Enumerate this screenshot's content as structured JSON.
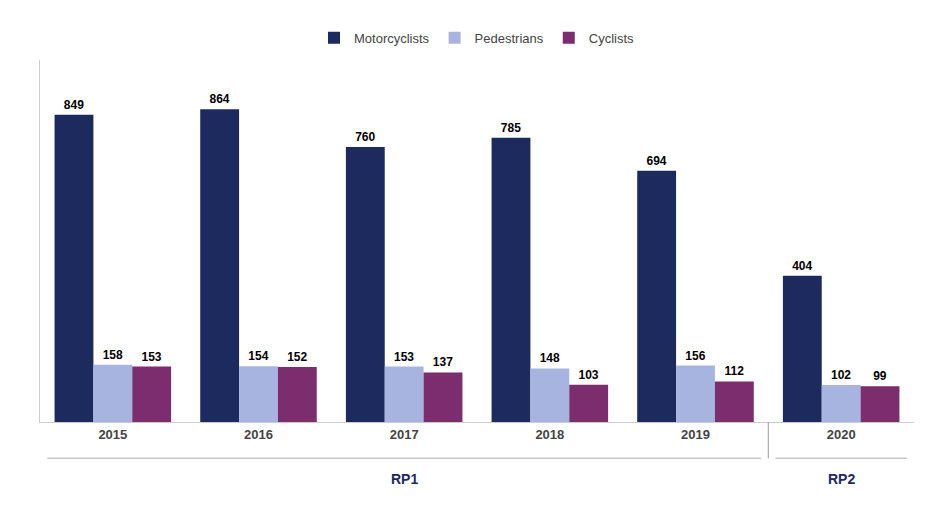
{
  "chart_data": {
    "type": "bar",
    "categories": [
      "2015",
      "2016",
      "2017",
      "2018",
      "2019",
      "2020"
    ],
    "series": [
      {
        "name": "Motorcyclists",
        "color": "#1c2a5e",
        "values": [
          849,
          864,
          760,
          785,
          694,
          404
        ]
      },
      {
        "name": "Pedestrians",
        "color": "#a8b4e0",
        "values": [
          158,
          154,
          153,
          148,
          156,
          102
        ]
      },
      {
        "name": "Cyclists",
        "color": "#7b2d6e",
        "values": [
          153,
          152,
          137,
          103,
          112,
          99
        ]
      }
    ],
    "ylim": [
      0,
      1000
    ],
    "yticks": [],
    "tick_labels": "x",
    "grid": false,
    "legend": "top",
    "data_labels": true,
    "annotations": [
      {
        "text": "RP1",
        "categories": [
          "2015",
          "2016",
          "2017",
          "2018",
          "2019"
        ]
      },
      {
        "text": "RP2",
        "categories": [
          "2020"
        ]
      }
    ]
  }
}
